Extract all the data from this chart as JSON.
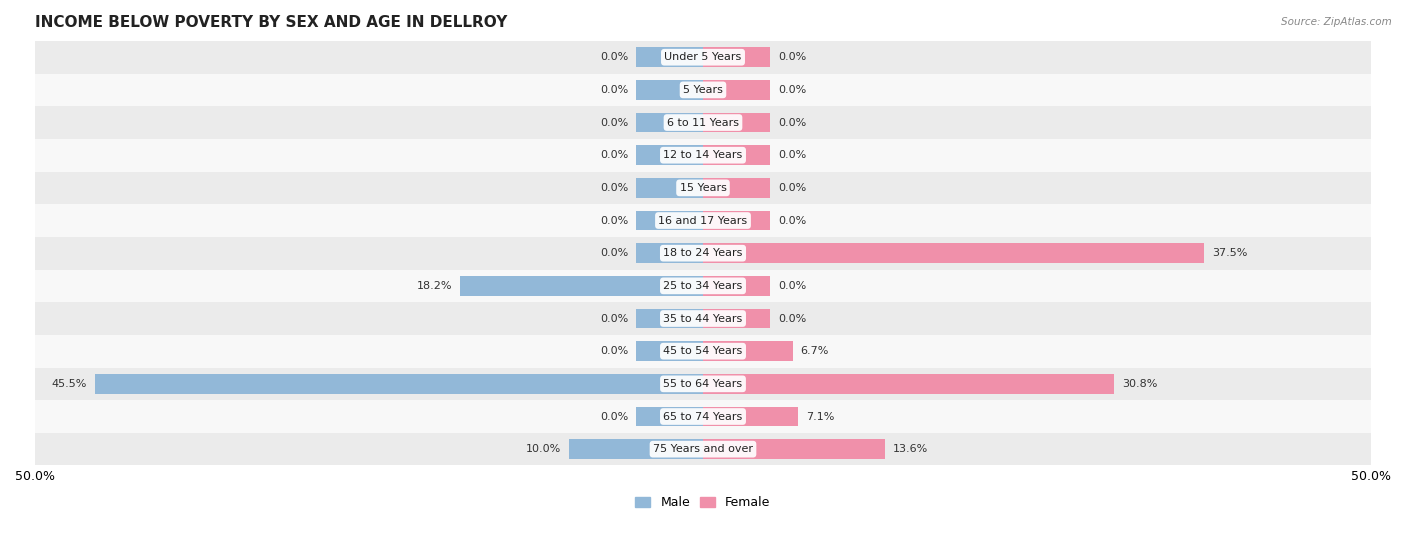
{
  "title": "INCOME BELOW POVERTY BY SEX AND AGE IN DELLROY",
  "source": "Source: ZipAtlas.com",
  "categories": [
    "Under 5 Years",
    "5 Years",
    "6 to 11 Years",
    "12 to 14 Years",
    "15 Years",
    "16 and 17 Years",
    "18 to 24 Years",
    "25 to 34 Years",
    "35 to 44 Years",
    "45 to 54 Years",
    "55 to 64 Years",
    "65 to 74 Years",
    "75 Years and over"
  ],
  "male_values": [
    0.0,
    0.0,
    0.0,
    0.0,
    0.0,
    0.0,
    0.0,
    18.2,
    0.0,
    0.0,
    45.5,
    0.0,
    10.0
  ],
  "female_values": [
    0.0,
    0.0,
    0.0,
    0.0,
    0.0,
    0.0,
    37.5,
    0.0,
    0.0,
    6.7,
    30.8,
    7.1,
    13.6
  ],
  "male_color": "#92b8d8",
  "female_color": "#f090aa",
  "male_label": "Male",
  "female_label": "Female",
  "xlim": 50.0,
  "bar_height": 0.6,
  "row_bg_even": "#ebebeb",
  "row_bg_odd": "#f8f8f8",
  "title_fontsize": 11,
  "tick_label_fontsize": 9,
  "value_fontsize": 8,
  "category_fontsize": 8,
  "background_color": "#ffffff",
  "stub_size": 5.0
}
